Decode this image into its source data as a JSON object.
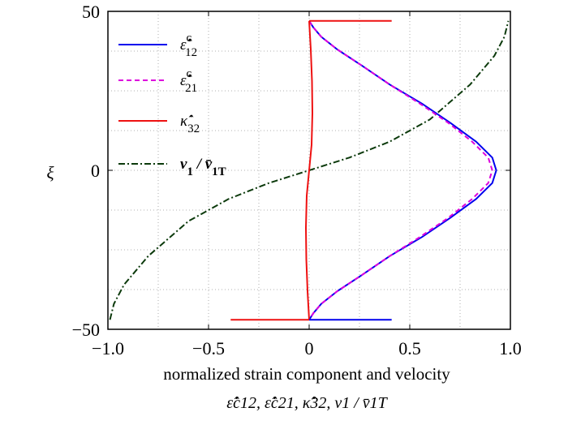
{
  "chart_data": {
    "type": "line",
    "xlabel": "normalized strain component and velocity",
    "xlabel_sub": "ε̇̂c12, ε̇̂c21, κ̇̂32, v1 / v̄1T",
    "ylabel": "ξ",
    "xlim": [
      -1.0,
      1.0
    ],
    "ylim": [
      -50,
      50
    ],
    "x_ticks": [
      -1.0,
      -0.5,
      0,
      0.5,
      1.0
    ],
    "x_tick_labels": [
      "−1.0",
      "−0.5",
      "0",
      "0.5",
      "1.0"
    ],
    "y_ticks": [
      -50,
      0,
      50
    ],
    "y_tick_labels": [
      "−50",
      "0",
      "50"
    ],
    "grid": "dotted",
    "legend_position": "left",
    "series": [
      {
        "name": "ε̇̂c12",
        "color": "#0000ee",
        "style": "solid",
        "points": [
          [
            0.0,
            47
          ],
          [
            0.02,
            45
          ],
          [
            0.06,
            42
          ],
          [
            0.14,
            38
          ],
          [
            0.26,
            33
          ],
          [
            0.4,
            27
          ],
          [
            0.56,
            21
          ],
          [
            0.7,
            15
          ],
          [
            0.83,
            9
          ],
          [
            0.91,
            4
          ],
          [
            0.93,
            0
          ],
          [
            0.91,
            -4
          ],
          [
            0.83,
            -9
          ],
          [
            0.7,
            -15
          ],
          [
            0.56,
            -21
          ],
          [
            0.4,
            -27
          ],
          [
            0.26,
            -33
          ],
          [
            0.14,
            -38
          ],
          [
            0.06,
            -42
          ],
          [
            0.02,
            -45
          ],
          [
            0.0,
            -47
          ]
        ]
      },
      {
        "name": "ε̇̂c21",
        "color": "#dd00dd",
        "style": "dashed",
        "points": [
          [
            0.0,
            47
          ],
          [
            0.02,
            45
          ],
          [
            0.06,
            42
          ],
          [
            0.14,
            38
          ],
          [
            0.26,
            33
          ],
          [
            0.4,
            27
          ],
          [
            0.55,
            21
          ],
          [
            0.69,
            15
          ],
          [
            0.81,
            9
          ],
          [
            0.89,
            4
          ],
          [
            0.91,
            0
          ],
          [
            0.89,
            -4
          ],
          [
            0.81,
            -9
          ],
          [
            0.69,
            -15
          ],
          [
            0.55,
            -21
          ],
          [
            0.4,
            -27
          ],
          [
            0.26,
            -33
          ],
          [
            0.14,
            -38
          ],
          [
            0.06,
            -42
          ],
          [
            0.02,
            -45
          ],
          [
            0.0,
            -47
          ]
        ]
      },
      {
        "name": "κ̇̂32",
        "color": "#ee1111",
        "style": "solid",
        "points": [
          [
            0.0,
            47
          ],
          [
            0.008,
            38
          ],
          [
            0.014,
            28
          ],
          [
            0.016,
            18
          ],
          [
            0.012,
            8
          ],
          [
            0.0,
            0
          ],
          [
            -0.012,
            -8
          ],
          [
            -0.016,
            -18
          ],
          [
            -0.014,
            -28
          ],
          [
            -0.008,
            -38
          ],
          [
            0.0,
            -47
          ]
        ]
      },
      {
        "name": "v1 / v̄1T",
        "color": "#0c3a0c",
        "style": "dashdot",
        "points": [
          [
            -0.99,
            -47
          ],
          [
            -0.97,
            -42
          ],
          [
            -0.92,
            -36
          ],
          [
            -0.8,
            -27
          ],
          [
            -0.6,
            -16
          ],
          [
            -0.4,
            -9
          ],
          [
            -0.2,
            -4
          ],
          [
            0.0,
            0
          ],
          [
            0.2,
            4
          ],
          [
            0.4,
            9
          ],
          [
            0.6,
            16
          ],
          [
            0.8,
            27
          ],
          [
            0.92,
            36
          ],
          [
            0.97,
            42
          ],
          [
            0.99,
            47
          ]
        ]
      }
    ],
    "steps": [
      {
        "series": "κ̇̂32",
        "color": "#ee1111",
        "y": 47,
        "x_from": 0.0,
        "x_to": 0.41
      },
      {
        "series": "κ̇̂32",
        "color": "#ee1111",
        "y": -47,
        "x_from": -0.39,
        "x_to": 0.0
      },
      {
        "series": "ε̇̂c12",
        "color": "#0000ee",
        "y": -47,
        "x_from": 0.0,
        "x_to": 0.41
      }
    ]
  },
  "legend": [
    {
      "base": "ε̇̂",
      "sup": "c",
      "sub": "12",
      "color": "#0000ee",
      "dash": ""
    },
    {
      "base": "ε̇̂",
      "sup": "c",
      "sub": "21",
      "color": "#dd00dd",
      "dash": "6,4"
    },
    {
      "base": "κ̇̂",
      "sup": "",
      "sub": "32",
      "color": "#ee1111",
      "dash": ""
    },
    {
      "base": "v",
      "sup": "",
      "sub": "1",
      "tail": " / v̄",
      "tail_sub": "1T",
      "color": "#0c3a0c",
      "dash": "8,3,2,3",
      "bold": true
    }
  ]
}
